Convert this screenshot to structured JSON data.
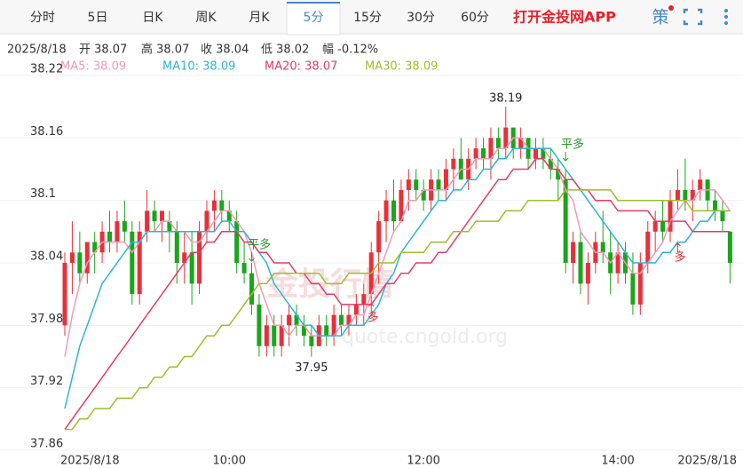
{
  "tabs": [
    "分时",
    "5日",
    "日K",
    "周K",
    "月K",
    "5分",
    "15分",
    "30分",
    "60分"
  ],
  "active_tab": "5分",
  "brand": "打开金投网APP",
  "tool": "策",
  "info": {
    "date": "2025/8/18",
    "items": [
      "开 38.07",
      "高 38.07",
      "收 38.04",
      "低 38.02",
      "幅 -0.12%"
    ]
  },
  "watermark": [
    "金投行情",
    "quote.cngold.org"
  ],
  "chart_data": {
    "type": "candlestick",
    "categories": [
      null,
      null,
      null,
      null,
      "2025/8/18",
      null,
      null,
      null,
      null,
      null,
      null,
      null,
      null,
      null,
      null,
      null,
      null,
      null,
      null,
      null,
      null,
      null,
      "10:00",
      null,
      null,
      null,
      null,
      null,
      null,
      null,
      null,
      null,
      null,
      null,
      null,
      null,
      null,
      null,
      null,
      null,
      null,
      null,
      null,
      null,
      null,
      null,
      null,
      null,
      "12:00",
      null,
      null,
      null,
      null,
      null,
      null,
      null,
      null,
      null,
      null,
      null,
      null,
      null,
      null,
      null,
      null,
      null,
      null,
      null,
      null,
      null,
      null,
      null,
      null,
      null,
      "14:00",
      null,
      null,
      null,
      null,
      null,
      null,
      null,
      null,
      null,
      null,
      null,
      "2025/8/18",
      null,
      null,
      null
    ],
    "ohlc": [
      [
        37.98,
        38.05,
        37.97,
        38.04
      ],
      [
        38.04,
        38.08,
        38.01,
        38.05
      ],
      [
        38.05,
        38.07,
        38.02,
        38.03
      ],
      [
        38.03,
        38.06,
        38.02,
        38.06
      ],
      [
        38.06,
        38.07,
        38.03,
        38.05
      ],
      [
        38.05,
        38.08,
        38.04,
        38.07
      ],
      [
        38.07,
        38.09,
        38.05,
        38.06
      ],
      [
        38.06,
        38.09,
        38.05,
        38.08
      ],
      [
        38.08,
        38.1,
        38.06,
        38.07
      ],
      [
        38.07,
        38.08,
        38.0,
        38.01
      ],
      [
        38.01,
        38.08,
        38.0,
        38.07
      ],
      [
        38.07,
        38.11,
        38.06,
        38.09
      ],
      [
        38.09,
        38.1,
        38.07,
        38.08
      ],
      [
        38.08,
        38.09,
        38.06,
        38.09
      ],
      [
        38.08,
        38.09,
        38.05,
        38.07
      ],
      [
        38.07,
        38.08,
        38.02,
        38.04
      ],
      [
        38.04,
        38.07,
        38.02,
        38.05
      ],
      [
        38.05,
        38.07,
        38.0,
        38.02
      ],
      [
        38.02,
        38.08,
        38.01,
        38.07
      ],
      [
        38.07,
        38.1,
        38.06,
        38.09
      ],
      [
        38.09,
        38.11,
        38.07,
        38.1
      ],
      [
        38.1,
        38.11,
        38.08,
        38.09
      ],
      [
        38.09,
        38.1,
        38.07,
        38.08
      ],
      [
        38.08,
        38.09,
        38.03,
        38.04
      ],
      [
        38.04,
        38.06,
        38.02,
        38.03
      ],
      [
        38.03,
        38.04,
        37.99,
        38.0
      ],
      [
        38.0,
        38.01,
        37.95,
        37.96
      ],
      [
        37.96,
        37.99,
        37.95,
        37.98
      ],
      [
        37.98,
        37.99,
        37.95,
        37.96
      ],
      [
        37.96,
        37.99,
        37.95,
        37.98
      ],
      [
        37.98,
        38.0,
        37.96,
        37.99
      ],
      [
        37.99,
        38.0,
        37.97,
        37.98
      ],
      [
        37.98,
        37.99,
        37.96,
        37.97
      ],
      [
        37.97,
        37.98,
        37.95,
        37.96
      ],
      [
        37.96,
        37.99,
        37.96,
        37.98
      ],
      [
        37.98,
        37.99,
        37.96,
        37.97
      ],
      [
        37.97,
        38.0,
        37.96,
        37.99
      ],
      [
        37.99,
        38.0,
        37.97,
        37.98
      ],
      [
        37.98,
        38.0,
        37.97,
        37.99
      ],
      [
        37.99,
        38.01,
        37.98,
        38.0
      ],
      [
        38.0,
        38.02,
        37.98,
        38.01
      ],
      [
        38.01,
        38.06,
        38.0,
        38.05
      ],
      [
        38.05,
        38.09,
        38.02,
        38.08
      ],
      [
        38.08,
        38.11,
        38.06,
        38.1
      ],
      [
        38.1,
        38.12,
        38.07,
        38.08
      ],
      [
        38.08,
        38.12,
        38.08,
        38.11
      ],
      [
        38.11,
        38.13,
        38.09,
        38.12
      ],
      [
        38.12,
        38.13,
        38.1,
        38.11
      ],
      [
        38.11,
        38.12,
        38.09,
        38.1
      ],
      [
        38.1,
        38.13,
        38.09,
        38.12
      ],
      [
        38.12,
        38.13,
        38.1,
        38.11
      ],
      [
        38.11,
        38.14,
        38.1,
        38.13
      ],
      [
        38.13,
        38.15,
        38.11,
        38.14
      ],
      [
        38.14,
        38.16,
        38.12,
        38.12
      ],
      [
        38.12,
        38.15,
        38.11,
        38.14
      ],
      [
        38.14,
        38.16,
        38.13,
        38.15
      ],
      [
        38.15,
        38.16,
        38.13,
        38.14
      ],
      [
        38.14,
        38.17,
        38.12,
        38.16
      ],
      [
        38.16,
        38.17,
        38.14,
        38.15
      ],
      [
        38.15,
        38.19,
        38.14,
        38.17
      ],
      [
        38.17,
        38.17,
        38.14,
        38.15
      ],
      [
        38.15,
        38.17,
        38.14,
        38.16
      ],
      [
        38.16,
        38.16,
        38.13,
        38.14
      ],
      [
        38.14,
        38.16,
        38.13,
        38.15
      ],
      [
        38.15,
        38.16,
        38.13,
        38.14
      ],
      [
        38.14,
        38.15,
        38.12,
        38.13
      ],
      [
        38.13,
        38.14,
        38.1,
        38.12
      ],
      [
        38.12,
        38.13,
        38.03,
        38.04
      ],
      [
        38.04,
        38.07,
        38.02,
        38.06
      ],
      [
        38.06,
        38.07,
        38.01,
        38.02
      ],
      [
        38.02,
        38.05,
        38.0,
        38.04
      ],
      [
        38.04,
        38.07,
        38.03,
        38.06
      ],
      [
        38.06,
        38.09,
        38.04,
        38.05
      ],
      [
        38.05,
        38.07,
        38.01,
        38.03
      ],
      [
        38.03,
        38.06,
        38.02,
        38.05
      ],
      [
        38.05,
        38.06,
        38.02,
        38.03
      ],
      [
        38.03,
        38.05,
        37.99,
        38.0
      ],
      [
        38.0,
        38.05,
        37.99,
        38.04
      ],
      [
        38.04,
        38.08,
        38.03,
        38.07
      ],
      [
        38.07,
        38.09,
        38.05,
        38.08
      ],
      [
        38.08,
        38.1,
        38.06,
        38.07
      ],
      [
        38.07,
        38.11,
        38.06,
        38.1
      ],
      [
        38.1,
        38.13,
        38.09,
        38.11
      ],
      [
        38.11,
        38.14,
        38.09,
        38.1
      ],
      [
        38.1,
        38.12,
        38.08,
        38.11
      ],
      [
        38.11,
        38.13,
        38.1,
        38.12
      ],
      [
        38.12,
        38.12,
        38.09,
        38.1
      ],
      [
        38.1,
        38.11,
        38.08,
        38.09
      ],
      [
        38.09,
        38.1,
        38.07,
        38.08
      ],
      [
        38.07,
        38.07,
        38.02,
        38.04
      ]
    ],
    "up_color": "#e8303a",
    "down_color": "#1aa51a",
    "series": [
      {
        "name": "MA5",
        "legend": "MA5: 38.09",
        "color": "#f29ab4",
        "values": [
          37.95,
          37.99,
          38.02,
          38.04,
          38.05,
          38.06,
          38.06,
          38.06,
          38.06,
          38.05,
          38.06,
          38.07,
          38.07,
          38.08,
          38.08,
          38.07,
          38.07,
          38.06,
          38.06,
          38.07,
          38.08,
          38.09,
          38.09,
          38.08,
          38.07,
          38.05,
          38.02,
          38.0,
          37.98,
          37.98,
          37.97,
          37.98,
          37.98,
          37.97,
          37.97,
          37.97,
          37.97,
          37.98,
          37.98,
          37.99,
          37.99,
          38.01,
          38.03,
          38.05,
          38.07,
          38.08,
          38.1,
          38.1,
          38.11,
          38.11,
          38.11,
          38.11,
          38.12,
          38.13,
          38.13,
          38.14,
          38.14,
          38.14,
          38.15,
          38.15,
          38.16,
          38.16,
          38.15,
          38.15,
          38.15,
          38.14,
          38.13,
          38.11,
          38.1,
          38.07,
          38.06,
          38.05,
          38.05,
          38.04,
          38.05,
          38.04,
          38.03,
          38.03,
          38.04,
          38.05,
          38.06,
          38.08,
          38.09,
          38.1,
          38.1,
          38.11,
          38.11,
          38.11,
          38.1,
          38.09
        ]
      },
      {
        "name": "MA10",
        "legend": "MA10: 38.09",
        "color": "#2bb5d6",
        "values": [
          37.9,
          37.93,
          37.96,
          37.98,
          38.0,
          38.02,
          38.03,
          38.04,
          38.05,
          38.06,
          38.06,
          38.07,
          38.07,
          38.07,
          38.07,
          38.07,
          38.07,
          38.07,
          38.07,
          38.07,
          38.07,
          38.08,
          38.08,
          38.07,
          38.07,
          38.06,
          38.05,
          38.04,
          38.02,
          38.01,
          38.0,
          37.99,
          37.98,
          37.98,
          37.97,
          37.97,
          37.97,
          37.97,
          37.98,
          37.98,
          37.98,
          37.99,
          38.0,
          38.02,
          38.03,
          38.05,
          38.06,
          38.07,
          38.08,
          38.09,
          38.1,
          38.1,
          38.11,
          38.11,
          38.12,
          38.12,
          38.13,
          38.13,
          38.14,
          38.14,
          38.15,
          38.15,
          38.15,
          38.15,
          38.15,
          38.15,
          38.14,
          38.13,
          38.12,
          38.11,
          38.1,
          38.09,
          38.08,
          38.07,
          38.06,
          38.05,
          38.04,
          38.04,
          38.04,
          38.04,
          38.05,
          38.05,
          38.06,
          38.06,
          38.07,
          38.08,
          38.08,
          38.09,
          38.09,
          38.09
        ]
      },
      {
        "name": "MA20",
        "legend": "MA20: 38.07",
        "color": "#e23c68",
        "values": [
          37.88,
          37.89,
          37.9,
          37.91,
          37.92,
          37.93,
          37.94,
          37.95,
          37.96,
          37.97,
          37.98,
          37.99,
          38.0,
          38.01,
          38.02,
          38.03,
          38.04,
          38.05,
          38.05,
          38.06,
          38.06,
          38.07,
          38.07,
          38.07,
          38.06,
          38.06,
          38.05,
          38.05,
          38.04,
          38.04,
          38.04,
          38.03,
          38.03,
          38.02,
          38.02,
          38.01,
          38.01,
          38.0,
          38.0,
          38.0,
          38.0,
          38.0,
          38.01,
          38.02,
          38.02,
          38.03,
          38.03,
          38.04,
          38.04,
          38.04,
          38.05,
          38.05,
          38.06,
          38.07,
          38.08,
          38.09,
          38.1,
          38.11,
          38.12,
          38.12,
          38.13,
          38.13,
          38.13,
          38.14,
          38.14,
          38.13,
          38.13,
          38.12,
          38.12,
          38.11,
          38.11,
          38.1,
          38.1,
          38.1,
          38.09,
          38.09,
          38.09,
          38.09,
          38.09,
          38.08,
          38.08,
          38.08,
          38.08,
          38.08,
          38.07,
          38.07,
          38.07,
          38.07,
          38.07,
          38.07
        ]
      },
      {
        "name": "MA30",
        "legend": "MA30: 38.09",
        "color": "#9dbf2a",
        "values": [
          37.88,
          37.88,
          37.89,
          37.89,
          37.9,
          37.9,
          37.9,
          37.91,
          37.91,
          37.91,
          37.92,
          37.92,
          37.93,
          37.93,
          37.94,
          37.94,
          37.95,
          37.95,
          37.96,
          37.97,
          37.97,
          37.98,
          37.98,
          37.99,
          38.0,
          38.01,
          38.02,
          38.02,
          38.03,
          38.03,
          38.03,
          38.03,
          38.03,
          38.03,
          38.03,
          38.02,
          38.02,
          38.02,
          38.03,
          38.03,
          38.03,
          38.03,
          38.04,
          38.04,
          38.04,
          38.05,
          38.05,
          38.05,
          38.05,
          38.06,
          38.06,
          38.06,
          38.07,
          38.07,
          38.07,
          38.08,
          38.08,
          38.08,
          38.08,
          38.09,
          38.09,
          38.09,
          38.1,
          38.1,
          38.1,
          38.1,
          38.1,
          38.11,
          38.11,
          38.11,
          38.11,
          38.11,
          38.11,
          38.11,
          38.1,
          38.1,
          38.1,
          38.1,
          38.1,
          38.1,
          38.1,
          38.1,
          38.1,
          38.1,
          38.09,
          38.09,
          38.09,
          38.09,
          38.09,
          38.09
        ]
      }
    ],
    "ylim": [
      37.86,
      38.22
    ],
    "yticks": [
      37.86,
      37.92,
      37.98,
      38.04,
      38.1,
      38.16,
      38.22
    ],
    "grid": true,
    "annotations": [
      "38.19",
      "37.95",
      "平多",
      "多",
      "平多",
      "多"
    ]
  }
}
